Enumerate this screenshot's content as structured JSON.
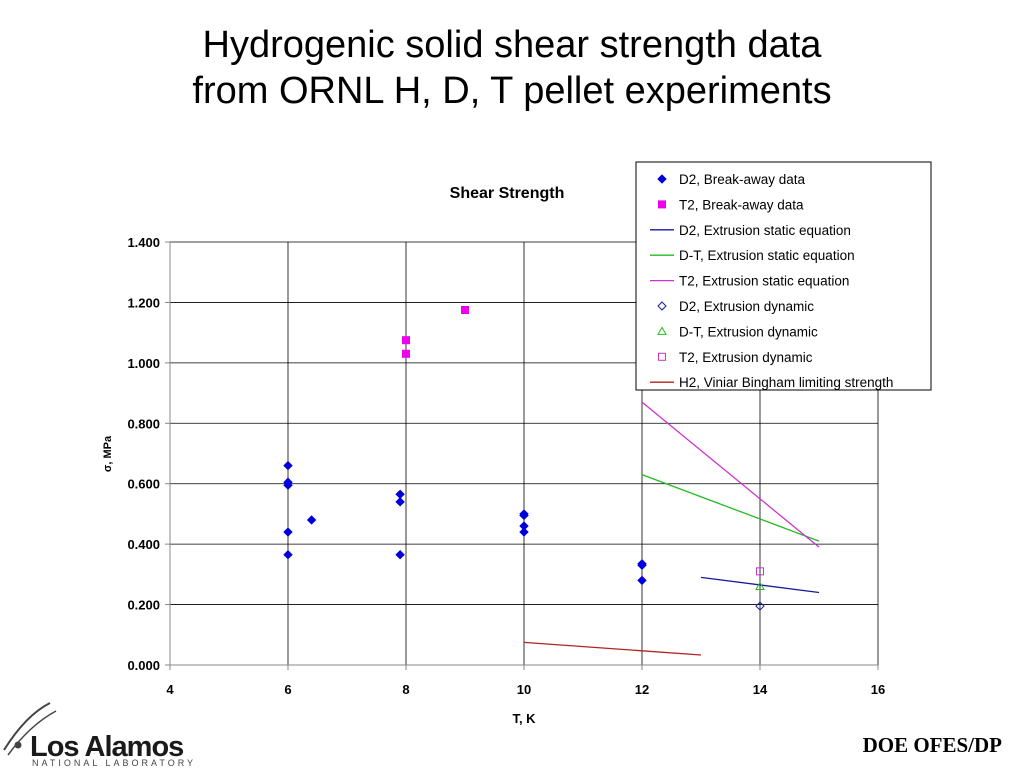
{
  "slide": {
    "title_line1": "Hydrogenic solid shear strength data",
    "title_line2": "from ORNL H, D, T pellet experiments",
    "footer": "DOE OFES/DP",
    "logo_main": "Los Alamos",
    "logo_sub": "NATIONAL LABORATORY"
  },
  "chart_data": {
    "type": "scatter",
    "title": "Shear Strength",
    "xlabel": "T, K",
    "ylabel": "σ, MPa",
    "xlim": [
      4,
      16
    ],
    "ylim": [
      0,
      1.4
    ],
    "xticks": [
      4,
      6,
      8,
      10,
      12,
      14,
      16
    ],
    "yticks": [
      0,
      0.2,
      0.4,
      0.6,
      0.8,
      1.0,
      1.2,
      1.4
    ],
    "xtick_labels": [
      "4",
      "6",
      "8",
      "10",
      "12",
      "14",
      "16"
    ],
    "ytick_labels": [
      "0.000",
      "0.200",
      "0.400",
      "0.600",
      "0.800",
      "1.000",
      "1.200",
      "1.400"
    ],
    "grid": true,
    "legend_position": "top-right",
    "series": [
      {
        "name": "D2, Break-away data",
        "kind": "marker",
        "marker": "diamond-filled",
        "color": "#0000dd",
        "points": [
          [
            6,
            0.66
          ],
          [
            6,
            0.605
          ],
          [
            6,
            0.595
          ],
          [
            6,
            0.44
          ],
          [
            6,
            0.365
          ],
          [
            6.4,
            0.48
          ],
          [
            7.9,
            0.565
          ],
          [
            7.9,
            0.54
          ],
          [
            7.9,
            0.365
          ],
          [
            10,
            0.5
          ],
          [
            10,
            0.495
          ],
          [
            10,
            0.46
          ],
          [
            10,
            0.44
          ],
          [
            12,
            0.335
          ],
          [
            12,
            0.33
          ],
          [
            12,
            0.28
          ]
        ]
      },
      {
        "name": "T2, Break-away data",
        "kind": "marker",
        "marker": "square-filled",
        "color": "#ee00ee",
        "points": [
          [
            8,
            1.075
          ],
          [
            8,
            1.03
          ],
          [
            9,
            1.175
          ]
        ]
      },
      {
        "name": "D2, Extrusion static equation",
        "kind": "line",
        "color": "#1a1aa0",
        "points": [
          [
            13,
            0.29
          ],
          [
            15,
            0.24
          ]
        ]
      },
      {
        "name": "D-T, Extrusion static equation",
        "kind": "line",
        "color": "#22bb22",
        "points": [
          [
            12,
            0.63
          ],
          [
            15,
            0.41
          ]
        ]
      },
      {
        "name": "T2, Extrusion static equation",
        "kind": "line",
        "color": "#cc33cc",
        "points": [
          [
            12,
            0.87
          ],
          [
            15,
            0.39
          ]
        ]
      },
      {
        "name": "D2, Extrusion dynamic",
        "kind": "marker",
        "marker": "diamond-open",
        "color": "#1a1aa0",
        "points": [
          [
            14,
            0.195
          ]
        ]
      },
      {
        "name": "D-T, Extrusion dynamic",
        "kind": "marker",
        "marker": "triangle-open",
        "color": "#22bb22",
        "points": [
          [
            14,
            0.26
          ]
        ]
      },
      {
        "name": "T2, Extrusion dynamic",
        "kind": "marker",
        "marker": "square-open",
        "color": "#cc33cc",
        "points": [
          [
            14,
            0.31
          ]
        ]
      },
      {
        "name": "H2, Viniar Bingham limiting strength",
        "kind": "line",
        "color": "#b22222",
        "points": [
          [
            10,
            0.075
          ],
          [
            13,
            0.033
          ]
        ]
      }
    ]
  }
}
